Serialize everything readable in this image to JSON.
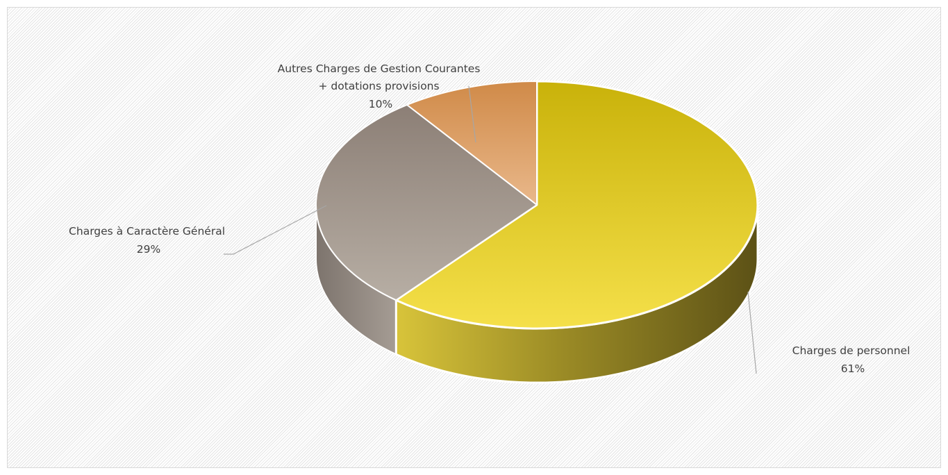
{
  "chart_data": {
    "type": "pie",
    "title": "",
    "style": "3d",
    "slices": [
      {
        "label": "Charges de personnel",
        "percent_label": "61%",
        "value": 61,
        "color_top": "#f5e04a",
        "color_top_dark": "#c9b20a",
        "color_side": "#8a7a1c"
      },
      {
        "label": "Charges à Caractère Général",
        "percent_label": "29%",
        "value": 29,
        "color_top": "#b7aea4",
        "color_top_dark": "#8c7f76",
        "color_side": "#8d857e"
      },
      {
        "label": "Autres Charges de Gestion Courantes + dotations provisions",
        "label_lines": [
          "Autres Charges de Gestion Courantes",
          "+ dotations provisions"
        ],
        "percent_label": "10%",
        "value": 10,
        "color_top": "#e9b88b",
        "color_top_dark": "#d08a48",
        "color_side": "#b07640"
      }
    ],
    "legend": "none",
    "leader_line_color": "#a6a6a6"
  }
}
